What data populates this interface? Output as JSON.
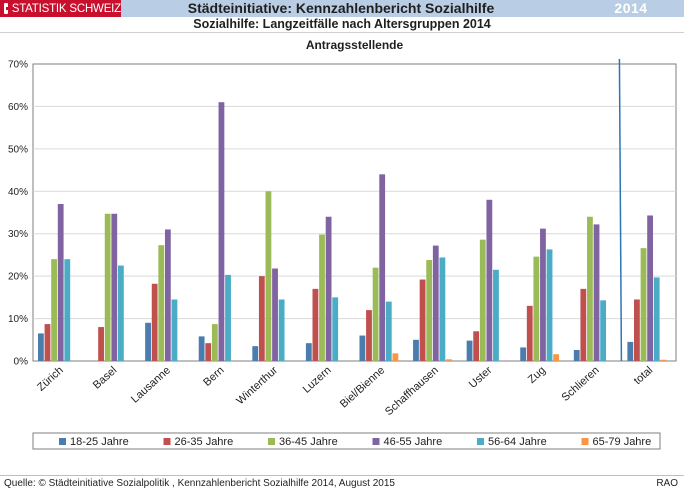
{
  "header": {
    "brand": "STATISTIK SCHWEIZ",
    "title": "Städteinitiative: Kennzahlenbericht Sozialhilfe",
    "year": "2014",
    "subtitle": "Sozialhilfe: Langzeitfälle nach Altersgruppen 2014"
  },
  "footer": {
    "source": "Quelle: © Städteinitiative Sozialpolitik , Kennzahlenbericht Sozialhilfe 2014, August 2015",
    "code": "RAO"
  },
  "colors": {
    "header_bg": "#b9cde5",
    "brand_red": "#c8102e",
    "divider": "#2e75b6"
  },
  "chart_data": {
    "type": "bar",
    "title": "Antragsstellende",
    "xlabel": "",
    "ylabel": "",
    "ylim": [
      0,
      70
    ],
    "yticks": [
      "0%",
      "10%",
      "20%",
      "30%",
      "40%",
      "50%",
      "60%",
      "70%"
    ],
    "grid": true,
    "legend_position": "bottom",
    "categories": [
      "Zürich",
      "Basel",
      "Lausanne",
      "Bern",
      "Winterthur",
      "Luzern",
      "Biel/Bienne",
      "Schaffhausen",
      "Uster",
      "Zug",
      "Schlieren",
      "total"
    ],
    "series": [
      {
        "name": "18-25 Jahre",
        "color": "#4a7cae",
        "values": [
          6.5,
          0,
          9,
          5.8,
          3.5,
          4.2,
          6,
          5,
          4.8,
          3.2,
          2.6,
          4.5
        ]
      },
      {
        "name": "26-35 Jahre",
        "color": "#c0504d",
        "values": [
          8.7,
          8,
          18.2,
          4.2,
          20,
          17,
          12,
          19.2,
          7,
          13,
          17,
          14.5
        ]
      },
      {
        "name": "36-45 Jahre",
        "color": "#9bbb59",
        "values": [
          24,
          34.7,
          27.3,
          8.7,
          40,
          29.8,
          22,
          23.8,
          28.6,
          24.6,
          34,
          26.6
        ]
      },
      {
        "name": "46-55 Jahre",
        "color": "#8064a2",
        "values": [
          37,
          34.7,
          31,
          61,
          21.8,
          34,
          44,
          27.2,
          38,
          31.2,
          32.2,
          34.3
        ]
      },
      {
        "name": "56-64 Jahre",
        "color": "#4bacc6",
        "values": [
          24,
          22.5,
          14.5,
          20.3,
          14.5,
          15,
          14,
          24.4,
          21.5,
          26.3,
          14.3,
          19.7
        ]
      },
      {
        "name": "65-79 Jahre",
        "color": "#f79646",
        "values": [
          0,
          0,
          0,
          0,
          0,
          0,
          1.8,
          0.4,
          0,
          1.6,
          0,
          0.3
        ]
      }
    ],
    "annotations": [
      "vertical divider line between Schlieren and total"
    ]
  }
}
